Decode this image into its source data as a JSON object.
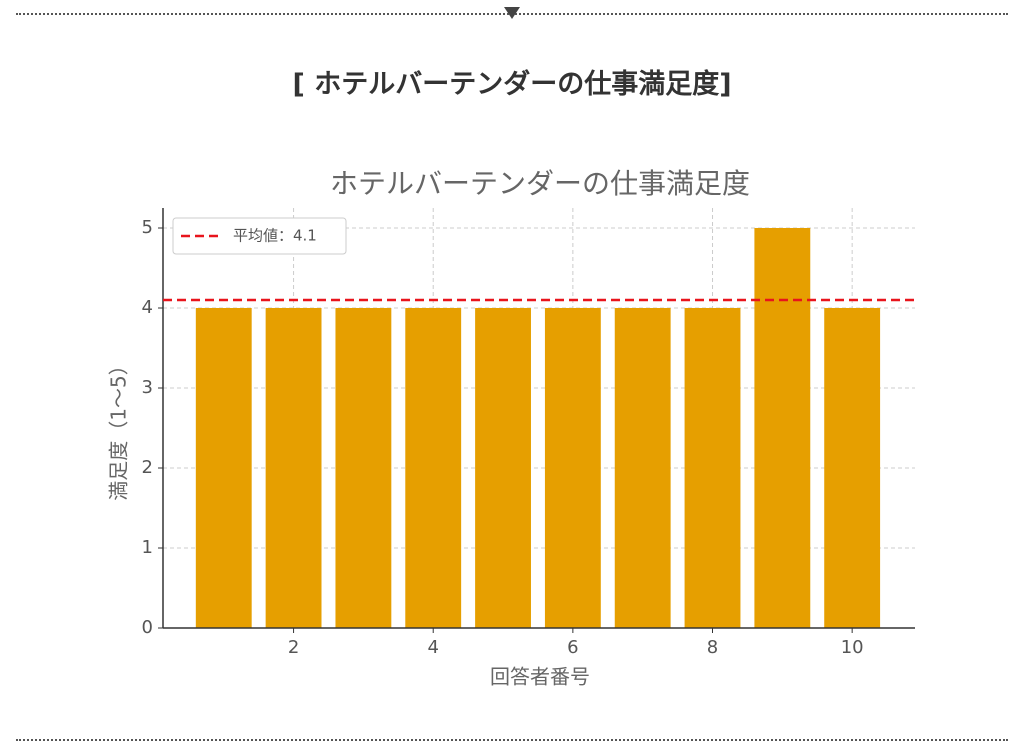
{
  "heading": "[ ホテルバーテンダーの仕事満足度]",
  "chart_data": {
    "type": "bar",
    "title": "ホテルバーテンダーの仕事満足度",
    "x_label": "回答者番号",
    "y_label": "満足度（1〜5）",
    "x": [
      1,
      2,
      3,
      4,
      5,
      6,
      7,
      8,
      9,
      10
    ],
    "values": [
      4,
      4,
      4,
      4,
      4,
      4,
      4,
      4,
      5,
      4
    ],
    "color": "#e69f00",
    "xlim": [
      0.13,
      10.9
    ],
    "xticks": [
      2,
      4,
      6,
      8,
      10
    ],
    "ylim": [
      0,
      5.25
    ],
    "yticks": [
      0,
      1,
      2,
      3,
      4,
      5
    ],
    "grid": true,
    "mean": {
      "value": 4.1,
      "label": "平均値：4.1",
      "color": "#e8141c"
    },
    "legend": "upper left"
  }
}
